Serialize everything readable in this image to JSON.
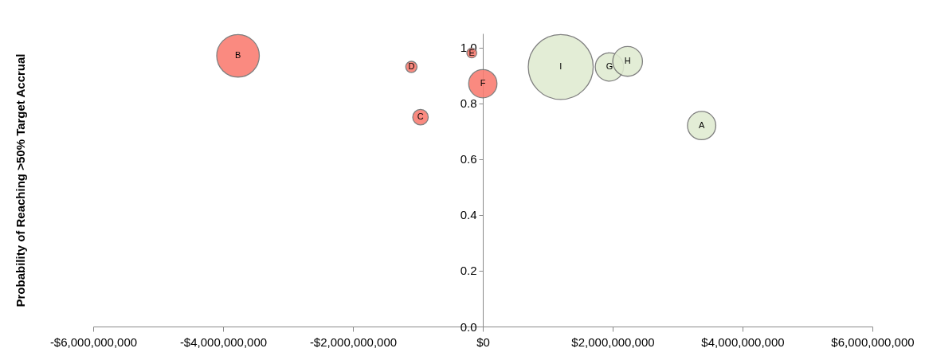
{
  "chart_data": {
    "type": "bubble",
    "ylabel": "Probability of Reaching >50% Target Accrual",
    "series": [
      {
        "color": "#fa7b6f",
        "x": [
          -3770000000,
          -1100000000,
          -170000000,
          -960000000,
          0
        ],
        "values": [
          0.97,
          0.93,
          0.98,
          0.75,
          0.87
        ],
        "sizes": [
          0.43,
          0.03,
          0.023,
          0.057,
          0.19
        ]
      },
      {
        "color": "#e0ebd1",
        "x": [
          1200000000,
          1950000000,
          2230000000,
          3370000000
        ],
        "values": [
          0.93,
          0.93,
          0.95,
          0.72
        ],
        "sizes": [
          1,
          0.19,
          0.21,
          0.19
        ]
      }
    ],
    "annotations": [
      {
        "text": "B",
        "x": -3770000000,
        "y": 0.97
      },
      {
        "text": "D",
        "x": -1100000000,
        "y": 0.93
      },
      {
        "text": "E",
        "x": -170000000,
        "y": 0.98
      },
      {
        "text": "C",
        "x": -960000000,
        "y": 0.75
      },
      {
        "text": "F",
        "x": 0,
        "y": 0.87
      },
      {
        "text": "I",
        "x": 1200000000,
        "y": 0.93
      },
      {
        "text": "G",
        "x": 1950000000,
        "y": 0.93
      },
      {
        "text": "H",
        "x": 2230000000,
        "y": 0.95
      },
      {
        "text": "A",
        "x": 3370000000,
        "y": 0.72
      }
    ],
    "xlim": [
      -6000000000,
      6000000000
    ],
    "xticks": [
      {
        "value": -6000000000,
        "label": "-$6,000,000,000"
      },
      {
        "value": -4000000000,
        "label": "-$4,000,000,000"
      },
      {
        "value": -2000000000,
        "label": "-$2,000,000,000"
      },
      {
        "value": 0,
        "label": "$0"
      },
      {
        "value": 2000000000,
        "label": "$2,000,000,000"
      },
      {
        "value": 4000000000,
        "label": "$4,000,000,000"
      },
      {
        "value": 6000000000,
        "label": "$6,000,000,000"
      }
    ],
    "ylim": [
      0,
      1.05
    ],
    "yticks": [
      {
        "value": 0,
        "label": "0.0"
      },
      {
        "value": 0.2,
        "label": "0.2"
      },
      {
        "value": 0.4,
        "label": "0.4"
      },
      {
        "value": 0.6,
        "label": "0.6"
      },
      {
        "value": 0.8,
        "label": "0.8"
      },
      {
        "value": 1,
        "label": "1.0"
      }
    ]
  }
}
